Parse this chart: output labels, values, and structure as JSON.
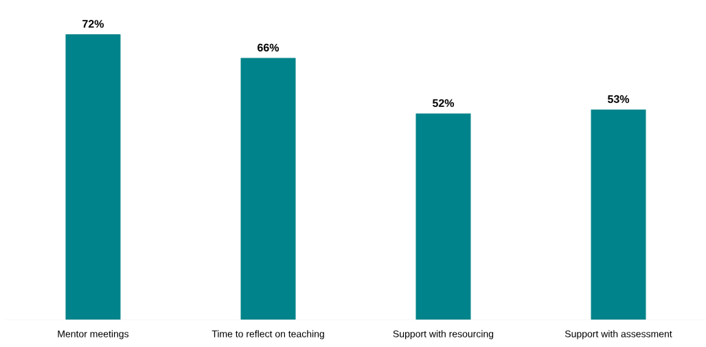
{
  "chart_data": {
    "type": "bar",
    "categories": [
      "Mentor meetings",
      "Time to reflect on teaching",
      "Support with resourcing",
      "Support with assessment"
    ],
    "values": [
      72,
      66,
      52,
      53
    ],
    "value_labels": [
      "72%",
      "66%",
      "52%",
      "53%"
    ],
    "color": "#00838a"
  }
}
